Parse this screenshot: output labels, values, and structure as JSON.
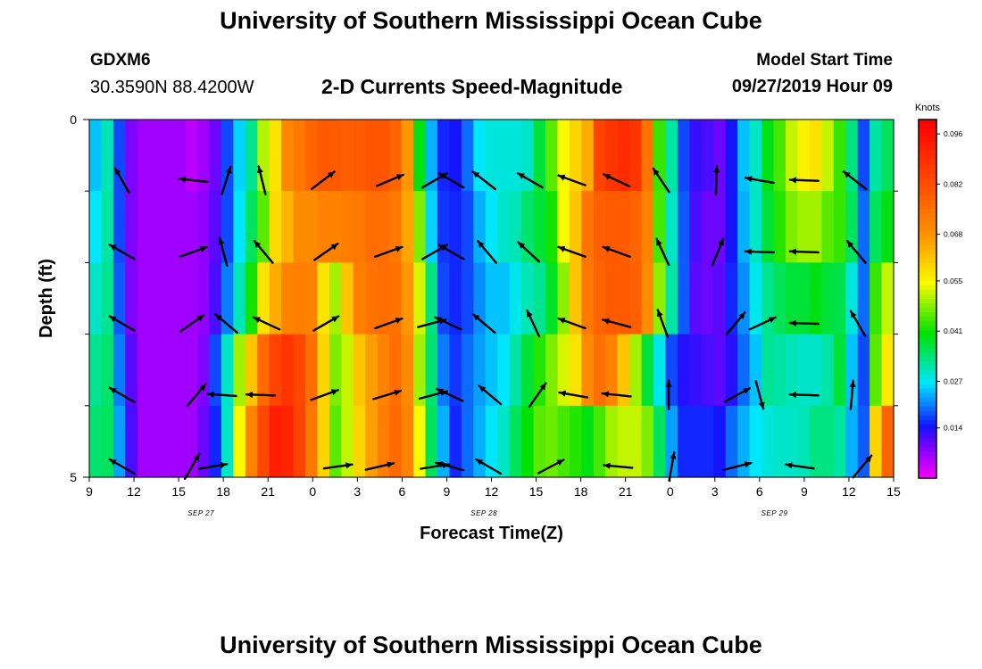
{
  "page": {
    "title_top": "University of Southern Mississippi Ocean Cube",
    "title_bottom": "University of Southern Mississippi Ocean Cube",
    "station_name": "GDXM6",
    "station_coords": "30.3590N 88.4200W",
    "plot_title": "2-D Currents Speed-Magnitude",
    "model_label": "Model Start Time",
    "model_time": "09/27/2019 Hour 09"
  },
  "chart_data": {
    "type": "heatmap",
    "title": "2-D Currents Speed-Magnitude",
    "xlabel": "Forecast Time(Z)",
    "ylabel": "Depth (ft)",
    "x_ticks": [
      {
        "hours": 0,
        "label": "9"
      },
      {
        "hours": 3,
        "label": "12"
      },
      {
        "hours": 6,
        "label": "15"
      },
      {
        "hours": 9,
        "label": "18"
      },
      {
        "hours": 12,
        "label": "21"
      },
      {
        "hours": 15,
        "label": "0"
      },
      {
        "hours": 18,
        "label": "3"
      },
      {
        "hours": 21,
        "label": "6"
      },
      {
        "hours": 24,
        "label": "9"
      },
      {
        "hours": 27,
        "label": "12"
      },
      {
        "hours": 30,
        "label": "15"
      },
      {
        "hours": 33,
        "label": "18"
      },
      {
        "hours": 36,
        "label": "21"
      },
      {
        "hours": 39,
        "label": "0"
      },
      {
        "hours": 42,
        "label": "3"
      },
      {
        "hours": 45,
        "label": "6"
      },
      {
        "hours": 48,
        "label": "9"
      },
      {
        "hours": 51,
        "label": "12"
      },
      {
        "hours": 54,
        "label": "15"
      }
    ],
    "date_labels": [
      {
        "hours": 7.5,
        "label": "SEP 27"
      },
      {
        "hours": 26.5,
        "label": "SEP 28"
      },
      {
        "hours": 46,
        "label": "SEP 29"
      }
    ],
    "y_tick_labels": [
      {
        "depth": 0,
        "label": "0"
      },
      {
        "depth": 5,
        "label": "5"
      }
    ],
    "y_minor_ticks": [
      1,
      2,
      3,
      4
    ],
    "ylim": [
      0,
      5
    ],
    "xlim": [
      0,
      54
    ],
    "legend": {
      "title": "Knots",
      "min": 0.0,
      "max": 0.1,
      "ticks": [
        "0.096",
        "0.082",
        "0.068",
        "0.055",
        "0.041",
        "0.027",
        "0.014"
      ],
      "tick_values": [
        0.096,
        0.082,
        0.068,
        0.055,
        0.041,
        0.027,
        0.014
      ]
    },
    "rows": [
      {
        "depth_start": 0,
        "depth_end": 1,
        "speeds": [
          0.025,
          0.031,
          0.018,
          0.009,
          0.007,
          0.007,
          0.007,
          0.007,
          0.005,
          0.007,
          0.01,
          0.018,
          0.026,
          0.033,
          0.051,
          0.058,
          0.071,
          0.074,
          0.078,
          0.08,
          0.08,
          0.079,
          0.08,
          0.081,
          0.081,
          0.078,
          0.068,
          0.04,
          0.024,
          0.016,
          0.015,
          0.02,
          0.027,
          0.029,
          0.029,
          0.029,
          0.03,
          0.038,
          0.046,
          0.055,
          0.06,
          0.065,
          0.085,
          0.088,
          0.09,
          0.088,
          0.075,
          0.044,
          0.032,
          0.018,
          0.013,
          0.012,
          0.01,
          0.015,
          0.025,
          0.03,
          0.04,
          0.045,
          0.052,
          0.056,
          0.058,
          0.052,
          0.044,
          0.034,
          0.018,
          0.032,
          0.036
        ]
      },
      {
        "depth_start": 1,
        "depth_end": 2,
        "speeds": [
          0.027,
          0.032,
          0.018,
          0.009,
          0.007,
          0.007,
          0.007,
          0.007,
          0.007,
          0.008,
          0.011,
          0.018,
          0.027,
          0.036,
          0.046,
          0.059,
          0.064,
          0.07,
          0.07,
          0.072,
          0.072,
          0.073,
          0.074,
          0.076,
          0.076,
          0.074,
          0.066,
          0.048,
          0.026,
          0.017,
          0.016,
          0.018,
          0.024,
          0.027,
          0.03,
          0.031,
          0.035,
          0.038,
          0.042,
          0.055,
          0.062,
          0.075,
          0.079,
          0.08,
          0.08,
          0.078,
          0.072,
          0.045,
          0.03,
          0.019,
          0.012,
          0.01,
          0.01,
          0.015,
          0.024,
          0.03,
          0.038,
          0.043,
          0.048,
          0.05,
          0.05,
          0.046,
          0.044,
          0.036,
          0.02,
          0.036,
          0.04
        ]
      },
      {
        "depth_start": 2,
        "depth_end": 3,
        "speeds": [
          0.03,
          0.033,
          0.019,
          0.009,
          0.007,
          0.007,
          0.007,
          0.007,
          0.007,
          0.008,
          0.012,
          0.021,
          0.031,
          0.042,
          0.058,
          0.065,
          0.072,
          0.073,
          0.072,
          0.058,
          0.05,
          0.062,
          0.073,
          0.075,
          0.076,
          0.075,
          0.068,
          0.053,
          0.034,
          0.018,
          0.016,
          0.018,
          0.022,
          0.025,
          0.025,
          0.028,
          0.031,
          0.033,
          0.039,
          0.049,
          0.062,
          0.074,
          0.078,
          0.08,
          0.08,
          0.079,
          0.07,
          0.049,
          0.032,
          0.019,
          0.011,
          0.01,
          0.011,
          0.016,
          0.022,
          0.028,
          0.033,
          0.036,
          0.038,
          0.038,
          0.04,
          0.038,
          0.037,
          0.029,
          0.02,
          0.044,
          0.052
        ]
      },
      {
        "depth_start": 3,
        "depth_end": 4,
        "speeds": [
          0.033,
          0.035,
          0.021,
          0.011,
          0.007,
          0.007,
          0.007,
          0.007,
          0.007,
          0.009,
          0.018,
          0.03,
          0.05,
          0.062,
          0.077,
          0.085,
          0.088,
          0.084,
          0.076,
          0.06,
          0.048,
          0.052,
          0.062,
          0.067,
          0.072,
          0.076,
          0.07,
          0.05,
          0.035,
          0.021,
          0.017,
          0.02,
          0.023,
          0.025,
          0.027,
          0.032,
          0.038,
          0.043,
          0.048,
          0.053,
          0.058,
          0.07,
          0.076,
          0.072,
          0.062,
          0.05,
          0.038,
          0.028,
          0.018,
          0.014,
          0.013,
          0.012,
          0.011,
          0.014,
          0.02,
          0.025,
          0.033,
          0.032,
          0.031,
          0.03,
          0.03,
          0.032,
          0.038,
          0.025,
          0.018,
          0.046,
          0.057
        ]
      },
      {
        "depth_start": 4,
        "depth_end": 5,
        "speeds": [
          0.035,
          0.036,
          0.023,
          0.012,
          0.007,
          0.007,
          0.007,
          0.007,
          0.007,
          0.01,
          0.016,
          0.03,
          0.055,
          0.072,
          0.084,
          0.093,
          0.092,
          0.085,
          0.074,
          0.06,
          0.046,
          0.052,
          0.06,
          0.067,
          0.073,
          0.077,
          0.072,
          0.055,
          0.036,
          0.024,
          0.016,
          0.02,
          0.024,
          0.027,
          0.03,
          0.036,
          0.041,
          0.046,
          0.047,
          0.045,
          0.043,
          0.04,
          0.045,
          0.05,
          0.052,
          0.052,
          0.048,
          0.036,
          0.023,
          0.016,
          0.016,
          0.016,
          0.015,
          0.02,
          0.024,
          0.027,
          0.029,
          0.03,
          0.03,
          0.031,
          0.034,
          0.034,
          0.032,
          0.024,
          0.019,
          0.06,
          0.078
        ]
      }
    ],
    "vector_rows": [
      {
        "depth": 0.85,
        "vectors": [
          {
            "hours": 2.2,
            "dir": 330
          },
          {
            "hours": 7.0,
            "dir": 276
          },
          {
            "hours": 9.2,
            "dir": 18
          },
          {
            "hours": 11.6,
            "dir": 346
          },
          {
            "hours": 15.7,
            "dir": 53
          },
          {
            "hours": 20.2,
            "dir": 67
          },
          {
            "hours": 23.2,
            "dir": 60
          },
          {
            "hours": 24.3,
            "dir": 300
          },
          {
            "hours": 26.5,
            "dir": 308
          },
          {
            "hours": 29.6,
            "dir": 300
          },
          {
            "hours": 32.4,
            "dir": 290
          },
          {
            "hours": 35.4,
            "dir": 295
          },
          {
            "hours": 38.4,
            "dir": 326
          },
          {
            "hours": 42.1,
            "dir": 2
          },
          {
            "hours": 45.0,
            "dir": 280
          },
          {
            "hours": 48.0,
            "dir": 272
          },
          {
            "hours": 51.4,
            "dir": 308
          }
        ]
      },
      {
        "depth": 1.85,
        "vectors": [
          {
            "hours": 2.2,
            "dir": 300
          },
          {
            "hours": 7.0,
            "dir": 70
          },
          {
            "hours": 9.0,
            "dir": 345
          },
          {
            "hours": 11.7,
            "dir": 320
          },
          {
            "hours": 15.9,
            "dir": 55
          },
          {
            "hours": 20.1,
            "dir": 70
          },
          {
            "hours": 23.2,
            "dir": 60
          },
          {
            "hours": 24.3,
            "dir": 300
          },
          {
            "hours": 26.7,
            "dir": 320
          },
          {
            "hours": 29.5,
            "dir": 313
          },
          {
            "hours": 32.4,
            "dir": 290
          },
          {
            "hours": 35.4,
            "dir": 290
          },
          {
            "hours": 38.5,
            "dir": 335
          },
          {
            "hours": 42.2,
            "dir": 22
          },
          {
            "hours": 45.0,
            "dir": 272
          },
          {
            "hours": 48.0,
            "dir": 272
          },
          {
            "hours": 51.5,
            "dir": 320
          }
        ]
      },
      {
        "depth": 2.85,
        "vectors": [
          {
            "hours": 2.2,
            "dir": 300
          },
          {
            "hours": 6.9,
            "dir": 55
          },
          {
            "hours": 9.2,
            "dir": 310
          },
          {
            "hours": 11.9,
            "dir": 295
          },
          {
            "hours": 15.9,
            "dir": 60
          },
          {
            "hours": 20.1,
            "dir": 70
          },
          {
            "hours": 23.0,
            "dir": 75
          },
          {
            "hours": 24.1,
            "dir": 295
          },
          {
            "hours": 26.5,
            "dir": 310
          },
          {
            "hours": 29.8,
            "dir": 335
          },
          {
            "hours": 32.4,
            "dir": 290
          },
          {
            "hours": 35.4,
            "dir": 285
          },
          {
            "hours": 38.5,
            "dir": 340
          },
          {
            "hours": 43.4,
            "dir": 40
          },
          {
            "hours": 45.2,
            "dir": 65
          },
          {
            "hours": 48.0,
            "dir": 272
          },
          {
            "hours": 51.6,
            "dir": 330
          }
        ]
      },
      {
        "depth": 3.85,
        "vectors": [
          {
            "hours": 2.2,
            "dir": 300
          },
          {
            "hours": 7.2,
            "dir": 40
          },
          {
            "hours": 8.9,
            "dir": 274
          },
          {
            "hours": 11.5,
            "dir": 272
          },
          {
            "hours": 15.8,
            "dir": 70
          },
          {
            "hours": 20.0,
            "dir": 73
          },
          {
            "hours": 23.1,
            "dir": 75
          },
          {
            "hours": 24.2,
            "dir": 295
          },
          {
            "hours": 26.9,
            "dir": 310
          },
          {
            "hours": 30.1,
            "dir": 35
          },
          {
            "hours": 32.5,
            "dir": 280
          },
          {
            "hours": 35.4,
            "dir": 276
          },
          {
            "hours": 38.9,
            "dir": 0
          },
          {
            "hours": 43.5,
            "dir": 62
          },
          {
            "hours": 45.0,
            "dir": 165
          },
          {
            "hours": 48.0,
            "dir": 272
          },
          {
            "hours": 51.2,
            "dir": 5
          }
        ]
      },
      {
        "depth": 4.85,
        "vectors": [
          {
            "hours": 2.2,
            "dir": 300
          },
          {
            "hours": 6.9,
            "dir": 30
          },
          {
            "hours": 8.3,
            "dir": 80
          },
          {
            "hours": 16.7,
            "dir": 82
          },
          {
            "hours": 19.5,
            "dir": 77
          },
          {
            "hours": 23.2,
            "dir": 81
          },
          {
            "hours": 24.2,
            "dir": 285
          },
          {
            "hours": 26.8,
            "dir": 300
          },
          {
            "hours": 31.0,
            "dir": 62
          },
          {
            "hours": 35.5,
            "dir": 275
          },
          {
            "hours": 39.1,
            "dir": 10
          },
          {
            "hours": 43.5,
            "dir": 76
          },
          {
            "hours": 47.7,
            "dir": 278
          },
          {
            "hours": 51.9,
            "dir": 40
          }
        ]
      }
    ]
  }
}
